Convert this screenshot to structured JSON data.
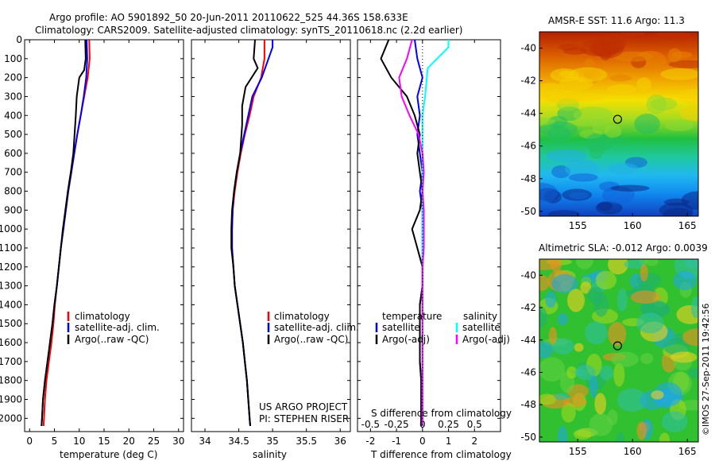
{
  "header": {
    "line1": "Argo profile: AO 5901892_50 20-Jun-2011 20110622_525 44.36S 158.633E",
    "line2": "Climatology: CARS2009. Satellite-adjusted climatology: synTS_20110618.nc (2.2d earlier)"
  },
  "colors": {
    "climatology": "#ff0000",
    "satellite": "#0000ff",
    "argo": "#000000",
    "sat_salinity": "#00ffff",
    "argo_salinity": "#ff00ff"
  },
  "chart_data": [
    {
      "type": "line",
      "panel": "temperature",
      "xlabel": "temperature (deg C)",
      "ylabel": "",
      "xlim": [
        -1,
        31
      ],
      "ylim": [
        2070,
        0
      ],
      "xticks": [
        0,
        5,
        10,
        15,
        20,
        25,
        30
      ],
      "yticks": [
        0,
        100,
        200,
        300,
        400,
        500,
        600,
        700,
        800,
        900,
        1000,
        1100,
        1200,
        1300,
        1400,
        1500,
        1600,
        1700,
        1800,
        1900,
        2000
      ],
      "legend": [
        "climatology",
        "satellite-adj. clim.",
        "Argo(..raw -QC)"
      ],
      "series": [
        {
          "name": "climatology",
          "color": "#ff0000",
          "x": [
            12.0,
            12.1,
            11.7,
            11.0,
            10.3,
            9.6,
            9.0,
            8.4,
            7.8,
            7.3,
            6.8,
            6.3,
            5.9,
            5.5,
            5.1,
            4.8,
            4.4,
            3.9,
            3.4,
            3.1,
            2.9,
            2.8
          ],
          "y": [
            0,
            100,
            200,
            300,
            400,
            500,
            600,
            700,
            800,
            900,
            1000,
            1100,
            1200,
            1300,
            1400,
            1500,
            1600,
            1700,
            1800,
            1900,
            2000,
            2040
          ]
        },
        {
          "name": "satellite-adj. clim.",
          "color": "#0000ff",
          "x": [
            11.5,
            11.6,
            11.4,
            10.9,
            10.3,
            9.6,
            9.0,
            8.4,
            7.8,
            7.3,
            6.8,
            6.3,
            5.9,
            5.5,
            5.0,
            4.6,
            4.1,
            3.6,
            3.1,
            2.7,
            2.5,
            2.4
          ],
          "y": [
            0,
            100,
            200,
            300,
            400,
            500,
            600,
            700,
            800,
            900,
            1000,
            1100,
            1200,
            1300,
            1400,
            1500,
            1600,
            1700,
            1800,
            1900,
            2000,
            2040
          ]
        },
        {
          "name": "Argo(..raw -QC)",
          "color": "#000000",
          "x": [
            11.2,
            11.3,
            11.0,
            10.0,
            9.5,
            9.3,
            8.8,
            8.3,
            7.7,
            7.2,
            6.7,
            6.3,
            5.9,
            5.5,
            5.0,
            4.6,
            4.1,
            3.6,
            3.1,
            2.7,
            2.5,
            2.4
          ],
          "y": [
            0,
            100,
            160,
            200,
            300,
            400,
            600,
            700,
            800,
            900,
            1000,
            1100,
            1200,
            1300,
            1400,
            1500,
            1600,
            1700,
            1800,
            1900,
            2000,
            2040
          ]
        }
      ]
    },
    {
      "type": "line",
      "panel": "salinity",
      "xlabel": "salinity",
      "xlim": [
        33.8,
        36.15
      ],
      "ylim": [
        2070,
        0
      ],
      "xticks": [
        34,
        34.5,
        35,
        35.5,
        36
      ],
      "legend": [
        "climatology",
        "satellite-adj. clim.",
        "Argo(..raw -QC)"
      ],
      "annotation": [
        "US ARGO PROJECT",
        "PI: STEPHEN RISER"
      ],
      "series": [
        {
          "name": "climatology",
          "color": "#ff0000",
          "x": [
            34.88,
            34.88,
            34.83,
            34.72,
            34.66,
            34.59,
            34.53,
            34.48,
            34.44,
            34.41,
            34.4,
            34.4,
            34.42,
            34.44,
            34.48,
            34.52,
            34.56,
            34.59,
            34.62,
            34.64,
            34.66,
            34.67
          ],
          "y": [
            0,
            100,
            200,
            300,
            400,
            500,
            600,
            700,
            800,
            900,
            1000,
            1100,
            1200,
            1300,
            1400,
            1500,
            1600,
            1700,
            1800,
            1900,
            2000,
            2040
          ]
        },
        {
          "name": "satellite-adj. clim.",
          "color": "#0000ff",
          "x": [
            35.0,
            35.0,
            34.84,
            34.7,
            34.64,
            34.58,
            34.52,
            34.47,
            34.43,
            34.41,
            34.4,
            34.4,
            34.42,
            34.44,
            34.48,
            34.52,
            34.56,
            34.59,
            34.62,
            34.64,
            34.66,
            34.67
          ],
          "y": [
            0,
            40,
            200,
            300,
            400,
            500,
            600,
            700,
            800,
            900,
            1000,
            1100,
            1200,
            1300,
            1400,
            1500,
            1600,
            1700,
            1800,
            1900,
            2000,
            2040
          ]
        },
        {
          "name": "Argo(..raw -QC)",
          "color": "#000000",
          "x": [
            34.74,
            34.72,
            34.78,
            34.6,
            34.55,
            34.55,
            34.52,
            34.47,
            34.43,
            34.4,
            34.39,
            34.39,
            34.42,
            34.44,
            34.48,
            34.52,
            34.56,
            34.59,
            34.62,
            34.64,
            34.66,
            34.67
          ],
          "y": [
            0,
            100,
            150,
            250,
            350,
            450,
            600,
            700,
            800,
            900,
            1000,
            1100,
            1200,
            1300,
            1400,
            1500,
            1600,
            1700,
            1800,
            1900,
            2000,
            2040
          ]
        }
      ]
    },
    {
      "type": "line",
      "panel": "difference",
      "xlabel": "T difference from climatology",
      "x2label": "S difference from climatology",
      "xlim": [
        -2.5,
        3.0
      ],
      "ylim": [
        2070,
        0
      ],
      "xticks": [
        -2,
        -1,
        0,
        1,
        2
      ],
      "x2ticks": [
        "-0.5",
        "-0.25",
        "0",
        "0.25",
        "0.5"
      ],
      "legend_left_title": "temperature",
      "legend_right_title": "salinity",
      "legend": [
        "satellite",
        "Argo(-adj)",
        "satellite",
        "Argo(-adj)"
      ],
      "series": [
        {
          "name": "satellite",
          "group": "temperature",
          "color": "#0000ff",
          "x": [
            -0.3,
            -0.2,
            0.0,
            -0.2,
            -0.1,
            -0.2,
            -0.1,
            0.0,
            -0.1,
            0.0,
            0.0,
            0.0,
            0.0,
            0.0,
            -0.1,
            -0.1,
            -0.1,
            -0.1,
            -0.05,
            -0.05
          ],
          "y": [
            0,
            100,
            200,
            300,
            400,
            500,
            600,
            700,
            800,
            900,
            1000,
            1100,
            1200,
            1300,
            1400,
            1500,
            1600,
            1700,
            1800,
            2040
          ]
        },
        {
          "name": "Argo(-adj)",
          "group": "temperature",
          "color": "#000000",
          "x": [
            -1.3,
            -1.6,
            -1.2,
            -0.6,
            -0.3,
            -0.1,
            -0.2,
            -0.1,
            0.0,
            -0.1,
            -0.4,
            -0.2,
            0.0,
            0.0,
            -0.1,
            -0.1,
            -0.1,
            -0.1,
            -0.05,
            -0.05
          ],
          "y": [
            0,
            100,
            200,
            300,
            400,
            500,
            600,
            700,
            800,
            900,
            1000,
            1100,
            1200,
            1300,
            1400,
            1500,
            1600,
            1700,
            1800,
            2040
          ]
        },
        {
          "name": "satellite",
          "group": "salinity",
          "color": "#00ffff",
          "x": [
            1.0,
            1.0,
            0.2,
            0.1,
            0.0,
            0.0,
            0.0,
            0.0,
            0.0,
            0.0,
            0.0,
            0.0,
            0.0,
            0.0,
            0.0,
            0.0,
            0.0,
            0.0,
            0.0,
            0.0
          ],
          "y": [
            0,
            40,
            150,
            300,
            400,
            500,
            600,
            700,
            800,
            900,
            1000,
            1100,
            1200,
            1300,
            1400,
            1500,
            1600,
            1700,
            1800,
            2040
          ]
        },
        {
          "name": "Argo(-adj)",
          "group": "salinity",
          "color": "#ff00ff",
          "x": [
            -0.4,
            -0.6,
            -0.9,
            -0.8,
            -0.5,
            -0.15,
            0.0,
            0.05,
            0.0,
            0.05,
            0.05,
            0.05,
            0.0,
            0.0,
            0.0,
            0.0,
            0.0,
            0.0,
            0.0,
            0.0
          ],
          "y": [
            0,
            100,
            200,
            300,
            400,
            500,
            600,
            700,
            800,
            900,
            1000,
            1100,
            1200,
            1300,
            1400,
            1500,
            1600,
            1700,
            1800,
            2040
          ]
        }
      ]
    },
    {
      "type": "heatmap",
      "panel": "sst_map",
      "title": "AMSR-E SST: 11.6 Argo: 11.3",
      "xlim": [
        151.5,
        166
      ],
      "ylim": [
        -50.3,
        -39
      ],
      "xticks": [
        155,
        160,
        165
      ],
      "yticks": [
        -40,
        -42,
        -44,
        -46,
        -48,
        -50
      ],
      "marker": {
        "lon": 158.633,
        "lat": -44.36
      }
    },
    {
      "type": "heatmap",
      "panel": "sla_map",
      "title": "Altimetric SLA: -0.012 Argo: 0.0039",
      "xlim": [
        151.5,
        166
      ],
      "ylim": [
        -50.3,
        -39
      ],
      "xticks": [
        155,
        160,
        165
      ],
      "yticks": [
        -40,
        -42,
        -44,
        -46,
        -48,
        -50
      ],
      "marker": {
        "lon": 158.633,
        "lat": -44.36
      }
    }
  ],
  "credit": "©IMOS 27-Sep-2011 19:42:56"
}
